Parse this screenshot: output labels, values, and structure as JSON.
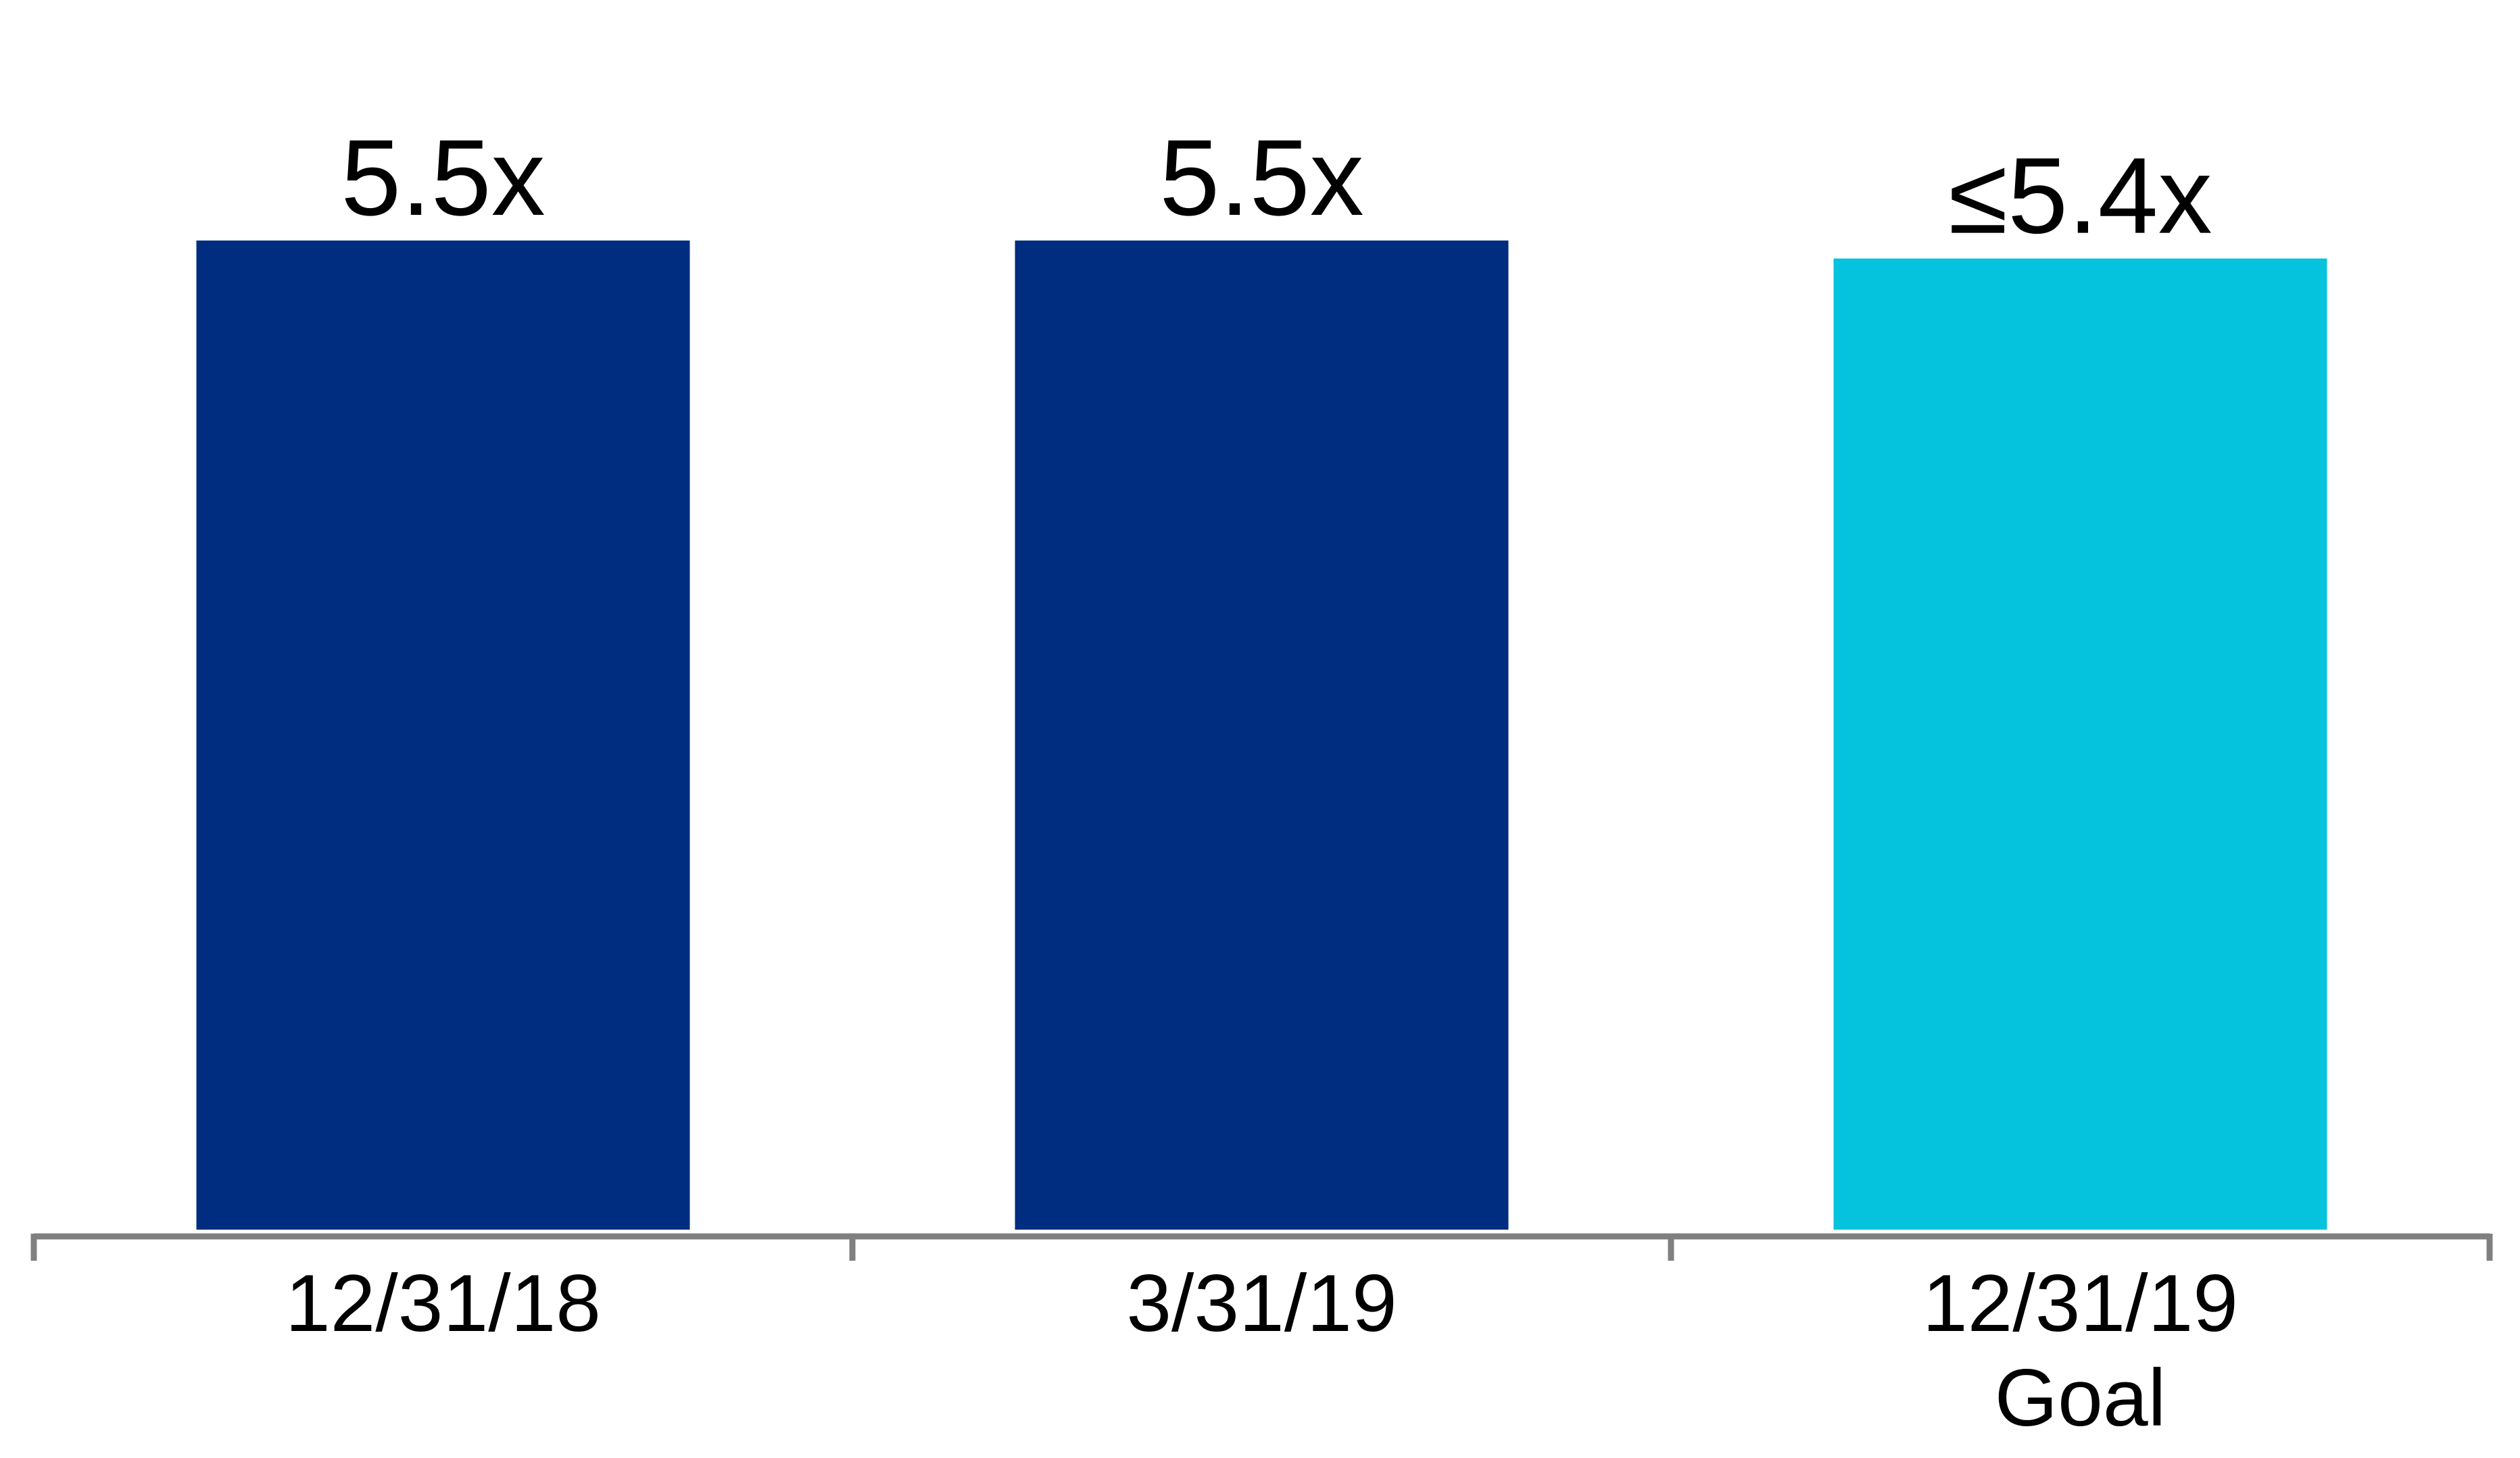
{
  "chart_data": {
    "type": "bar",
    "categories": [
      "12/31/18",
      "3/31/19",
      "12/31/19\nGoal"
    ],
    "values": [
      5.5,
      5.5,
      5.4
    ],
    "data_labels": [
      "5.5x",
      "5.5x",
      "≤5.4x"
    ],
    "bar_colors": [
      "#002D80",
      "#002D80",
      "#05C3DD"
    ],
    "axis_color": "#808080",
    "title": "",
    "xlabel": "",
    "ylabel": "",
    "ylim": [
      0,
      5.5
    ],
    "grid": false,
    "legend": "none"
  }
}
